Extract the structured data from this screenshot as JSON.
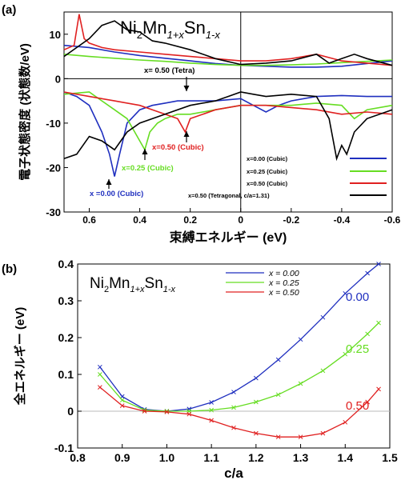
{
  "colors": {
    "blue": "#1f2fbf",
    "green": "#66dd22",
    "red": "#e02020",
    "black": "#000000",
    "grey": "#bbbbbb"
  },
  "chart_data": [
    {
      "panel_label": "(a)",
      "type": "line",
      "title_parts": {
        "pre": "Ni",
        "s1": "2",
        "mid": "Mn",
        "s2": "1+x",
        "post": "Sn",
        "s3": "1-x"
      },
      "xlabel": "束縛エネルギー (eV)",
      "ylabel": "電子状態密度 (状態数/eV)",
      "xlim": [
        0.7,
        -0.6
      ],
      "ylim": [
        -30,
        15
      ],
      "x_ticks": [
        0.6,
        0.4,
        0.2,
        0,
        -0.2,
        -0.4,
        -0.6
      ],
      "x_tick_labels": [
        "0.6",
        "0.4",
        "0.2",
        "0",
        "-0.2",
        "-0.4",
        "-0.6"
      ],
      "y_ticks": [
        10,
        0,
        -10,
        -20,
        -30
      ],
      "y_tick_labels": [
        "10",
        "0",
        "-10",
        "-20",
        "-30"
      ],
      "legend_position": "lower-right",
      "series": [
        {
          "name": "x=0.00 (Cubic)",
          "color": "#1f2fbf",
          "x_up": [
            0.7,
            0.6,
            0.5,
            0.4,
            0.3,
            0.2,
            0.1,
            0.0,
            -0.1,
            -0.2,
            -0.3,
            -0.4,
            -0.5,
            -0.6
          ],
          "y_up": [
            7.5,
            7.0,
            6.0,
            5.2,
            4.6,
            4.0,
            3.4,
            3.0,
            2.8,
            2.6,
            2.6,
            2.8,
            3.4,
            4.0
          ],
          "x_dn": [
            0.7,
            0.65,
            0.6,
            0.55,
            0.52,
            0.5,
            0.48,
            0.45,
            0.4,
            0.35,
            0.3,
            0.25,
            0.2,
            0.1,
            0.0,
            -0.05,
            -0.1,
            -0.15,
            -0.2,
            -0.25,
            -0.3,
            -0.4,
            -0.5,
            -0.6
          ],
          "y_dn": [
            -3,
            -4,
            -6,
            -12,
            -17,
            -22,
            -17,
            -10,
            -7,
            -6,
            -5.5,
            -5,
            -5,
            -5,
            -4.5,
            -6,
            -7.5,
            -6,
            -5,
            -4.5,
            -4,
            -3.8,
            -4,
            -4
          ]
        },
        {
          "name": "x=0.25 (Cubic)",
          "color": "#66dd22",
          "x_up": [
            0.7,
            0.6,
            0.5,
            0.4,
            0.3,
            0.2,
            0.1,
            0.0,
            -0.1,
            -0.2,
            -0.3,
            -0.4,
            -0.5,
            -0.6
          ],
          "y_up": [
            5.5,
            5.0,
            4.6,
            4.2,
            3.9,
            3.5,
            3.2,
            3.0,
            3.0,
            3.1,
            3.3,
            3.6,
            3.9,
            4.2
          ],
          "x_dn": [
            0.7,
            0.6,
            0.55,
            0.5,
            0.45,
            0.42,
            0.4,
            0.38,
            0.36,
            0.33,
            0.3,
            0.25,
            0.2,
            0.1,
            0.0,
            -0.1,
            -0.2,
            -0.3,
            -0.4,
            -0.45,
            -0.5,
            -0.6
          ],
          "y_dn": [
            -3.5,
            -3,
            -5,
            -7,
            -9,
            -12,
            -14,
            -16,
            -12,
            -10,
            -9,
            -8,
            -8,
            -7,
            -6,
            -6,
            -6,
            -5.5,
            -6,
            -9,
            -7,
            -6
          ]
        },
        {
          "name": "x=0.50 (Cubic)",
          "color": "#e02020",
          "x_up": [
            0.7,
            0.66,
            0.64,
            0.62,
            0.6,
            0.55,
            0.5,
            0.4,
            0.3,
            0.2,
            0.1,
            0.0,
            -0.1,
            -0.2,
            -0.3,
            -0.4,
            -0.5,
            -0.6
          ],
          "y_up": [
            6.5,
            7.5,
            14.5,
            9,
            8,
            7,
            6.5,
            6.0,
            5.5,
            5.0,
            4.5,
            4.0,
            4.0,
            4.5,
            5.5,
            4.0,
            3.5,
            3.0
          ],
          "x_dn": [
            0.7,
            0.6,
            0.5,
            0.4,
            0.35,
            0.3,
            0.25,
            0.22,
            0.2,
            0.15,
            0.1,
            0.0,
            -0.1,
            -0.2,
            -0.3,
            -0.4,
            -0.5,
            -0.6
          ],
          "y_dn": [
            -3,
            -4,
            -5,
            -6,
            -7,
            -8,
            -9,
            -12,
            -9,
            -8,
            -7,
            -6,
            -6,
            -6.5,
            -7,
            -8,
            -7.5,
            -8
          ]
        },
        {
          "name": "x=0.50 (Tetragonal, c/a=1.31)",
          "color": "#000000",
          "x_up": [
            0.7,
            0.6,
            0.55,
            0.5,
            0.45,
            0.4,
            0.35,
            0.3,
            0.2,
            0.1,
            0.0,
            -0.1,
            -0.2,
            -0.3,
            -0.35,
            -0.4,
            -0.45,
            -0.5,
            -0.6
          ],
          "y_up": [
            5,
            9,
            12,
            13,
            11,
            10.5,
            8.5,
            8,
            6.5,
            4.5,
            3.2,
            3.5,
            4.0,
            5.5,
            3.5,
            4.5,
            5.5,
            4.5,
            3.0
          ],
          "x_dn": [
            0.7,
            0.65,
            0.6,
            0.55,
            0.5,
            0.45,
            0.4,
            0.3,
            0.2,
            0.1,
            0.05,
            0.0,
            -0.05,
            -0.1,
            -0.2,
            -0.3,
            -0.35,
            -0.38,
            -0.4,
            -0.42,
            -0.45,
            -0.5,
            -0.6
          ],
          "y_dn": [
            -18,
            -17,
            -13,
            -14,
            -16,
            -12,
            -10,
            -8,
            -6,
            -5,
            -4,
            -3,
            -3.5,
            -4,
            -3.5,
            -4,
            -9,
            -18,
            -15,
            -17,
            -12,
            -9,
            -7
          ]
        }
      ],
      "annotations": [
        {
          "text": "x= 0.50 (Tetra)",
          "color": "#000000",
          "point": [
            0.22,
            -2
          ]
        },
        {
          "text": "x=0.50 (Cubic)",
          "color": "#e02020",
          "point": [
            0.22,
            -12
          ]
        },
        {
          "text": "x=0.25 (Cubic)",
          "color": "#66dd22",
          "point": [
            0.38,
            -16
          ]
        },
        {
          "text": "x =0.00 (Cubic)",
          "color": "#1f2fbf",
          "point": [
            0.5,
            -22
          ]
        }
      ]
    },
    {
      "panel_label": "(b)",
      "type": "line",
      "title_parts": {
        "pre": "Ni",
        "s1": "2",
        "mid": "Mn",
        "s2": "1+x",
        "post": "Sn",
        "s3": "1-x"
      },
      "xlabel": "c/a",
      "ylabel": "全エネルギー (eV)",
      "xlim": [
        0.8,
        1.5
      ],
      "ylim": [
        -0.1,
        0.4
      ],
      "x_ticks": [
        0.8,
        0.9,
        1.0,
        1.1,
        1.2,
        1.3,
        1.4,
        1.5
      ],
      "x_tick_labels": [
        "0.8",
        "0.9",
        "1.0",
        "1.1",
        "1.2",
        "1.3",
        "1.4",
        "1.5"
      ],
      "y_ticks": [
        -0.1,
        0,
        0.1,
        0.2,
        0.3,
        0.4
      ],
      "y_tick_labels": [
        "-0.1",
        "0",
        "0.1",
        "0.2",
        "0.3",
        "0.4"
      ],
      "legend_position": "top-right",
      "series": [
        {
          "name": "x = 0.00",
          "end_label": "0.00",
          "color": "#1f2fbf",
          "x": [
            0.85,
            0.9,
            0.95,
            1.0,
            1.05,
            1.1,
            1.15,
            1.2,
            1.25,
            1.3,
            1.35,
            1.4,
            1.45,
            1.475
          ],
          "y": [
            0.12,
            0.04,
            0.005,
            0.0,
            0.006,
            0.024,
            0.052,
            0.09,
            0.14,
            0.195,
            0.255,
            0.32,
            0.375,
            0.4
          ]
        },
        {
          "name": "x = 0.25",
          "end_label": "0.25",
          "color": "#66dd22",
          "x": [
            0.85,
            0.9,
            0.95,
            1.0,
            1.05,
            1.1,
            1.15,
            1.2,
            1.25,
            1.3,
            1.35,
            1.4,
            1.45,
            1.475
          ],
          "y": [
            0.1,
            0.03,
            0.003,
            0.0,
            0.0,
            0.003,
            0.01,
            0.025,
            0.045,
            0.075,
            0.11,
            0.155,
            0.21,
            0.24
          ]
        },
        {
          "name": "x = 0.50",
          "end_label": "0.50",
          "color": "#e02020",
          "x": [
            0.85,
            0.9,
            0.95,
            1.0,
            1.05,
            1.1,
            1.15,
            1.2,
            1.25,
            1.3,
            1.35,
            1.4,
            1.45,
            1.475
          ],
          "y": [
            0.065,
            0.015,
            0.0,
            -0.002,
            -0.008,
            -0.025,
            -0.045,
            -0.06,
            -0.07,
            -0.07,
            -0.06,
            -0.03,
            0.025,
            0.06
          ]
        }
      ]
    }
  ]
}
